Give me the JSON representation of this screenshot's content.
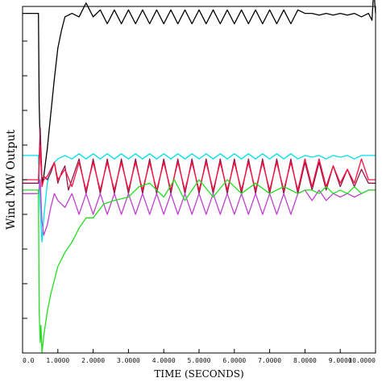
{
  "chart_data": {
    "type": "line",
    "title": "",
    "xlabel": "TIME (SECONDS)",
    "ylabel": "Wind MW Output",
    "xlim": [
      0,
      10
    ],
    "ylim": [
      0,
      10
    ],
    "x_ticks": [
      0,
      1,
      2,
      3,
      4,
      5,
      6,
      7,
      8,
      9,
      10
    ],
    "x_tick_labels": [
      "0.0",
      "1.0000",
      "2.0000",
      "3.0000",
      "4.0000",
      "5.0000",
      "6.0000",
      "7.0000",
      "8.0000",
      "9.0000",
      "10.0000"
    ],
    "y_ticks": [
      1,
      2,
      3,
      4,
      5,
      6,
      7,
      8,
      9
    ],
    "grid": false,
    "legend": "none",
    "series": [
      {
        "color": "#000000",
        "x": [
          0,
          0.45,
          0.47,
          0.5,
          0.55,
          0.6,
          0.7,
          0.8,
          0.9,
          1.0,
          1.1,
          1.2,
          1.4,
          1.6,
          1.8,
          2.0,
          2.2,
          2.4,
          2.6,
          2.8,
          3.0,
          3.2,
          3.4,
          3.6,
          3.8,
          4.0,
          4.2,
          4.4,
          4.6,
          4.8,
          5.0,
          5.2,
          5.4,
          5.6,
          5.8,
          6.0,
          6.2,
          6.4,
          6.6,
          6.8,
          7.0,
          7.2,
          7.4,
          7.6,
          7.8,
          8.0,
          8.2,
          8.4,
          8.6,
          8.8,
          9.0,
          9.2,
          9.4,
          9.6,
          9.8,
          9.9,
          9.95,
          10.0
        ],
        "y": [
          9.8,
          9.8,
          7.2,
          6.0,
          4.9,
          5.1,
          5.9,
          6.9,
          7.9,
          8.8,
          9.3,
          9.7,
          9.8,
          9.7,
          10.1,
          9.7,
          9.9,
          9.5,
          9.9,
          9.5,
          9.9,
          9.5,
          9.9,
          9.5,
          9.9,
          9.5,
          9.9,
          9.5,
          9.9,
          9.5,
          9.9,
          9.5,
          9.9,
          9.5,
          9.9,
          9.5,
          9.9,
          9.5,
          9.9,
          9.5,
          9.9,
          9.5,
          9.9,
          9.5,
          9.9,
          9.8,
          9.8,
          9.75,
          9.8,
          9.75,
          9.8,
          9.75,
          9.8,
          9.7,
          9.8,
          9.6,
          10.5,
          9.8
        ]
      },
      {
        "color": "#00e0e8",
        "x": [
          0,
          0.45,
          0.5,
          0.55,
          0.6,
          0.7,
          0.8,
          0.9,
          1.0,
          1.2,
          1.4,
          1.6,
          1.8,
          2.0,
          2.2,
          2.4,
          2.6,
          2.8,
          3.0,
          3.2,
          3.4,
          3.6,
          3.8,
          4.0,
          4.2,
          4.4,
          4.6,
          4.8,
          5.0,
          5.2,
          5.4,
          5.6,
          5.8,
          6.0,
          6.2,
          6.4,
          6.6,
          6.8,
          7.0,
          7.2,
          7.4,
          7.6,
          7.8,
          8.0,
          8.2,
          8.4,
          8.6,
          8.8,
          9.0,
          9.2,
          9.4,
          9.6,
          9.8,
          10.0
        ],
        "y": [
          5.7,
          5.7,
          4.2,
          3.2,
          3.9,
          4.9,
          5.3,
          5.5,
          5.6,
          5.7,
          5.6,
          5.75,
          5.6,
          5.75,
          5.6,
          5.75,
          5.6,
          5.75,
          5.6,
          5.75,
          5.6,
          5.75,
          5.6,
          5.75,
          5.6,
          5.75,
          5.6,
          5.75,
          5.6,
          5.75,
          5.6,
          5.75,
          5.6,
          5.75,
          5.6,
          5.75,
          5.6,
          5.75,
          5.6,
          5.75,
          5.6,
          5.75,
          5.6,
          5.7,
          5.65,
          5.7,
          5.6,
          5.7,
          5.65,
          5.7,
          5.6,
          5.7,
          5.7,
          5.7
        ]
      },
      {
        "color": "#8b1a4a",
        "x": [
          0,
          0.45,
          0.5,
          0.55,
          0.6,
          0.7,
          0.8,
          0.9,
          1.0,
          1.1,
          1.2,
          1.3,
          1.4,
          1.6,
          1.8,
          2.0,
          2.2,
          2.4,
          2.6,
          2.8,
          3.0,
          3.2,
          3.4,
          3.6,
          3.8,
          4.0,
          4.2,
          4.4,
          4.6,
          4.8,
          5.0,
          5.2,
          5.4,
          5.6,
          5.8,
          6.0,
          6.2,
          6.4,
          6.6,
          6.8,
          7.0,
          7.2,
          7.4,
          7.6,
          7.8,
          8.0,
          8.2,
          8.4,
          8.6,
          8.8,
          9.0,
          9.2,
          9.4,
          9.6,
          9.8,
          10.0
        ],
        "y": [
          4.9,
          4.9,
          6.5,
          5.0,
          5.1,
          5.0,
          5.2,
          5.5,
          4.9,
          5.2,
          5.4,
          4.7,
          5.0,
          5.6,
          4.6,
          5.6,
          4.6,
          5.6,
          4.6,
          5.6,
          4.6,
          5.6,
          4.6,
          5.6,
          4.6,
          5.6,
          4.6,
          5.6,
          4.6,
          5.6,
          4.6,
          5.6,
          4.6,
          5.6,
          4.6,
          5.6,
          4.6,
          5.6,
          4.6,
          5.6,
          4.6,
          5.6,
          4.6,
          5.6,
          4.6,
          5.5,
          4.7,
          5.5,
          4.7,
          5.4,
          4.8,
          5.3,
          4.8,
          5.3,
          4.9,
          4.9
        ]
      },
      {
        "color": "#ff1040",
        "x": [
          0,
          0.45,
          0.5,
          0.55,
          0.6,
          0.7,
          0.8,
          0.9,
          1.0,
          1.2,
          1.4,
          1.6,
          1.8,
          2.0,
          2.2,
          2.4,
          2.6,
          2.8,
          3.0,
          3.2,
          3.4,
          3.6,
          3.8,
          4.0,
          4.2,
          4.4,
          4.6,
          4.8,
          5.0,
          5.2,
          5.4,
          5.6,
          5.8,
          6.0,
          6.2,
          6.4,
          6.6,
          6.8,
          7.0,
          7.2,
          7.4,
          7.6,
          7.8,
          8.0,
          8.2,
          8.4,
          8.6,
          8.8,
          9.0,
          9.2,
          9.4,
          9.6,
          9.8,
          10.0
        ],
        "y": [
          5.0,
          5.0,
          6.0,
          4.8,
          5.0,
          5.1,
          5.3,
          5.5,
          5.0,
          5.3,
          4.8,
          5.5,
          4.7,
          5.5,
          4.7,
          5.5,
          4.7,
          5.5,
          4.7,
          5.5,
          4.7,
          5.5,
          4.7,
          5.5,
          4.7,
          5.5,
          4.7,
          5.5,
          4.7,
          5.5,
          4.7,
          5.5,
          4.7,
          5.5,
          4.7,
          5.5,
          4.7,
          5.5,
          4.7,
          5.5,
          4.7,
          5.5,
          4.7,
          5.6,
          4.8,
          5.6,
          4.8,
          5.4,
          4.9,
          5.3,
          4.9,
          5.6,
          5.0,
          5.0
        ]
      },
      {
        "color": "#c040d0",
        "x": [
          0,
          0.45,
          0.5,
          0.55,
          0.6,
          0.7,
          0.8,
          0.9,
          1.0,
          1.2,
          1.4,
          1.6,
          1.8,
          2.0,
          2.2,
          2.4,
          2.6,
          2.8,
          3.0,
          3.2,
          3.4,
          3.6,
          3.8,
          4.0,
          4.2,
          4.4,
          4.6,
          4.8,
          5.0,
          5.2,
          5.4,
          5.6,
          5.8,
          6.0,
          6.2,
          6.4,
          6.6,
          6.8,
          7.0,
          7.2,
          7.4,
          7.6,
          7.8,
          8.0,
          8.2,
          8.4,
          8.6,
          8.8,
          9.0,
          9.2,
          9.4,
          9.6,
          9.8,
          10.0
        ],
        "y": [
          4.6,
          4.6,
          5.0,
          3.8,
          3.4,
          3.7,
          4.2,
          4.6,
          4.4,
          4.2,
          4.6,
          4.0,
          4.6,
          4.0,
          4.6,
          4.0,
          4.6,
          4.0,
          4.6,
          4.0,
          4.6,
          4.0,
          4.6,
          4.0,
          4.6,
          4.0,
          4.6,
          4.0,
          4.6,
          4.0,
          4.6,
          4.0,
          4.6,
          4.0,
          4.6,
          4.0,
          4.6,
          4.0,
          4.6,
          4.0,
          4.6,
          4.0,
          4.6,
          4.7,
          4.4,
          4.7,
          4.4,
          4.6,
          4.5,
          4.6,
          4.5,
          4.6,
          4.7,
          4.7
        ]
      },
      {
        "color": "#20e020",
        "x": [
          0,
          0.45,
          0.47,
          0.5,
          0.52,
          0.55,
          0.6,
          0.7,
          0.8,
          0.9,
          1.0,
          1.2,
          1.4,
          1.6,
          1.8,
          2.0,
          2.3,
          2.6,
          3.0,
          3.3,
          3.6,
          4.0,
          4.3,
          4.6,
          5.0,
          5.4,
          5.8,
          6.2,
          6.6,
          7.0,
          7.4,
          7.8,
          8.0,
          8.2,
          8.4,
          8.6,
          8.8,
          9.0,
          9.2,
          9.4,
          9.6,
          9.8,
          10.0
        ],
        "y": [
          4.7,
          4.7,
          1.2,
          0.3,
          0.8,
          0.0,
          0.5,
          1.2,
          1.7,
          2.1,
          2.5,
          2.9,
          3.2,
          3.6,
          3.9,
          3.9,
          4.3,
          4.4,
          4.5,
          4.8,
          4.9,
          4.5,
          5.0,
          4.4,
          5.0,
          4.5,
          5.0,
          4.6,
          4.9,
          4.6,
          4.8,
          4.6,
          4.7,
          4.7,
          4.6,
          4.8,
          4.6,
          4.7,
          4.6,
          4.8,
          4.6,
          4.7,
          4.7
        ]
      }
    ]
  }
}
